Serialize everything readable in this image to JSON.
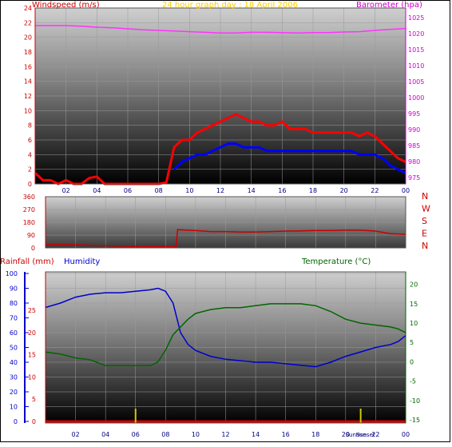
{
  "header": {
    "title": "24 hour graph day : 18 April 2006",
    "windspeed_label": "Windspeed (m/s)",
    "barometer_label": "Barometer (hpa)"
  },
  "direction_panel": {
    "compass_labels": [
      "N",
      "W",
      "S",
      "E",
      "N"
    ]
  },
  "bottom_panel": {
    "rainfall_label": "Rainfall (mm)",
    "humidity_label": "Humidity",
    "temperature_label": "Temperature (°C)",
    "sun_labels": [
      "Sunrise",
      "Sunset"
    ],
    "sunrise_hour": 6.0,
    "sunset_hour": 21.0
  },
  "colors": {
    "windspeed": "#ff0000",
    "wind_avg": "#0000ff",
    "barometer": "#ff33ff",
    "direction": "#cc0000",
    "rainfall": "#cc0000",
    "humidity": "#0000cc",
    "temperature": "#006600",
    "humidity_axis": "#0000cc",
    "rain_axis": "#cc0000",
    "temperature_axis": "#006600",
    "sun_marker": "#cccc00",
    "title": "#ffcc00"
  },
  "chart_data": [
    {
      "type": "line",
      "name": "wind-barometer",
      "x_ticks": [
        "02",
        "04",
        "06",
        "08",
        "10",
        "12",
        "14",
        "16",
        "18",
        "20",
        "22",
        "00"
      ],
      "xlim": [
        0,
        24
      ],
      "ylim_left": [
        0,
        24
      ],
      "y_ticks_left": [
        0,
        2,
        4,
        6,
        8,
        10,
        12,
        14,
        16,
        18,
        20,
        22,
        24
      ],
      "ylim_right": [
        975,
        1025
      ],
      "y_ticks_right": [
        975,
        980,
        985,
        990,
        995,
        1000,
        1005,
        1010,
        1015,
        1020,
        1025
      ],
      "series": [
        {
          "name": "Windspeed (m/s)",
          "axis": "left",
          "x": [
            0,
            0.5,
            1,
            1.5,
            2,
            2.5,
            3,
            3.5,
            4,
            4.5,
            5,
            5.5,
            6,
            6.5,
            7,
            7.5,
            8,
            8.5,
            9,
            9.5,
            10,
            10.5,
            11,
            11.5,
            12,
            12.5,
            13,
            13.5,
            14,
            14.5,
            15,
            15.5,
            16,
            16.5,
            17,
            17.5,
            18,
            18.5,
            19,
            19.5,
            20,
            20.5,
            21,
            21.5,
            22,
            22.5,
            23,
            23.5,
            24
          ],
          "y": [
            1.5,
            0.5,
            0.5,
            0,
            0.5,
            0,
            0,
            0.8,
            1.0,
            0,
            0,
            0,
            0,
            0,
            0,
            0,
            0,
            0.2,
            5,
            6,
            6,
            7,
            7.5,
            8,
            8.5,
            9,
            9.5,
            9,
            8.5,
            8.5,
            8,
            8,
            8.5,
            7.5,
            7.5,
            7.5,
            7,
            7,
            7,
            7,
            7,
            7,
            6.5,
            7,
            6.5,
            5.5,
            4.5,
            3.5,
            3
          ]
        },
        {
          "name": "Wind average",
          "axis": "left",
          "x": [
            9,
            9.5,
            10,
            10.5,
            11,
            11.5,
            12,
            12.5,
            13,
            13.5,
            14,
            14.5,
            15,
            15.5,
            16,
            16.5,
            17,
            17.5,
            18,
            18.5,
            19,
            19.5,
            20,
            20.5,
            21,
            21.5,
            22,
            22.5,
            23,
            23.5,
            24
          ],
          "y": [
            2,
            3,
            3.5,
            4,
            4,
            4.5,
            5,
            5.5,
            5.5,
            5,
            5,
            5,
            4.5,
            4.5,
            4.5,
            4.5,
            4.5,
            4.5,
            4.5,
            4.5,
            4.5,
            4.5,
            4.5,
            4.5,
            4,
            4,
            4,
            3.5,
            2.5,
            2,
            1.5
          ]
        },
        {
          "name": "Barometer (hpa)",
          "axis": "right",
          "x": [
            0,
            1,
            2,
            3,
            4,
            5,
            6,
            7,
            8,
            9,
            10,
            11,
            12,
            13,
            14,
            15,
            16,
            17,
            18,
            19,
            20,
            21,
            22,
            23,
            24
          ],
          "y": [
            1022.5,
            1022.5,
            1022.5,
            1022.3,
            1022.0,
            1021.8,
            1021.5,
            1021.2,
            1021.0,
            1020.8,
            1020.6,
            1020.4,
            1020.2,
            1020.2,
            1020.4,
            1020.4,
            1020.3,
            1020.2,
            1020.3,
            1020.3,
            1020.5,
            1020.6,
            1021.0,
            1021.3,
            1021.6
          ]
        }
      ]
    },
    {
      "type": "line",
      "name": "wind-direction",
      "x_ticks": [
        "02",
        "04",
        "06",
        "08",
        "10",
        "12",
        "14",
        "16",
        "18",
        "20",
        "22",
        "00"
      ],
      "xlim": [
        0,
        24
      ],
      "ylim": [
        0,
        360
      ],
      "y_ticks": [
        0,
        90,
        180,
        270,
        360
      ],
      "series": [
        {
          "name": "Wind direction",
          "x": [
            0,
            0.5,
            1,
            2,
            3,
            4,
            5,
            6,
            7,
            8,
            8.7,
            8.8,
            10,
            11,
            12,
            13,
            14,
            15,
            16,
            17,
            18,
            19,
            20,
            21,
            22,
            23,
            24
          ],
          "y": [
            20,
            25,
            25,
            22,
            18,
            15,
            12,
            10,
            10,
            10,
            10,
            128,
            122,
            115,
            115,
            112,
            112,
            115,
            118,
            120,
            122,
            122,
            125,
            125,
            118,
            100,
            95
          ]
        }
      ]
    },
    {
      "type": "line",
      "name": "rain-humidity-temperature",
      "x_ticks": [
        "02",
        "04",
        "06",
        "08",
        "10",
        "12",
        "14",
        "16",
        "18",
        "20",
        "22",
        "00"
      ],
      "xlim": [
        0,
        24
      ],
      "ylim_humidity": [
        0,
        100
      ],
      "y_ticks_humidity": [
        0,
        10,
        20,
        30,
        40,
        50,
        60,
        70,
        80,
        90,
        100
      ],
      "ylim_rain": [
        0,
        33.3
      ],
      "y_ticks_rain": [
        0,
        5,
        10,
        15,
        20,
        25
      ],
      "ylim_temperature": [
        -15,
        22
      ],
      "y_ticks_temperature": [
        -15,
        -10,
        -5,
        0,
        5,
        10,
        15,
        20
      ],
      "series": [
        {
          "name": "Humidity",
          "x": [
            0,
            1,
            2,
            3,
            4,
            5,
            6,
            7,
            7.5,
            8,
            8.5,
            9,
            9.5,
            10,
            11,
            12,
            13,
            14,
            15,
            16,
            17,
            18,
            19,
            20,
            21,
            22,
            23,
            23.5,
            24
          ],
          "y": [
            77,
            80,
            84,
            86,
            87,
            87,
            88,
            89,
            90,
            88,
            80,
            60,
            52,
            48,
            44,
            42,
            41,
            40,
            40,
            39,
            38,
            37,
            40,
            44,
            47,
            50,
            52,
            54,
            58
          ]
        },
        {
          "name": "Temperature (°C)",
          "x": [
            0,
            1,
            2,
            3,
            4,
            5,
            6,
            7,
            7.5,
            8,
            8.5,
            9,
            9.5,
            10,
            11,
            12,
            13,
            14,
            15,
            16,
            17,
            18,
            19,
            20,
            21,
            22,
            23,
            23.5,
            24
          ],
          "y": [
            2.5,
            2.0,
            1.0,
            0.5,
            -1,
            -1,
            -1,
            -1,
            0,
            3,
            7,
            9,
            11,
            12.5,
            13.5,
            14,
            14,
            14.5,
            15,
            15,
            15,
            14.5,
            13,
            11,
            10,
            9.5,
            9,
            8.5,
            7.5
          ]
        },
        {
          "name": "Rainfall (mm)",
          "x": [
            0,
            24
          ],
          "y": [
            0,
            0
          ]
        }
      ]
    }
  ]
}
